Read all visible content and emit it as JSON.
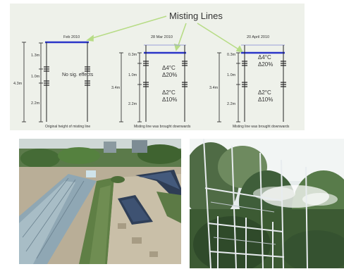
{
  "title": "Misting Lines",
  "colors": {
    "background": "#eef1ea",
    "arrow": "#b7dc86",
    "line_current": "#2b35c8",
    "pole": "#222222",
    "text": "#333333"
  },
  "panels": [
    {
      "date": "Feb 2010",
      "total": "4.3m",
      "segments": [
        "1.3m",
        "1.0m",
        "2.2m"
      ],
      "note": "No sig. effects",
      "caption": "Original height of misting line"
    },
    {
      "date": "28 Mar 2010",
      "total": "3.4m",
      "segments": [
        "0.3m",
        "1.0m",
        "2.2m"
      ],
      "temp_upper": "Δ4°C",
      "rh_upper": "Δ20%",
      "temp_lower": "Δ2°C",
      "rh_lower": "Δ10%",
      "caption": "Misting line was brought downwards"
    },
    {
      "date": "20 April 2010",
      "total": "3.4m",
      "segments": [
        "0.3m",
        "1.0m",
        "2.2m"
      ],
      "temp_upper": "Δ4°C",
      "rh_upper": "Δ20%",
      "temp_lower": "Δ2°C",
      "rh_lower": "Δ10%",
      "caption": "Misting line was brought downwards"
    }
  ],
  "photos": [
    {
      "subject": "rooftop garden with solar panels"
    },
    {
      "subject": "misting system on scaffold among palm trees"
    }
  ]
}
